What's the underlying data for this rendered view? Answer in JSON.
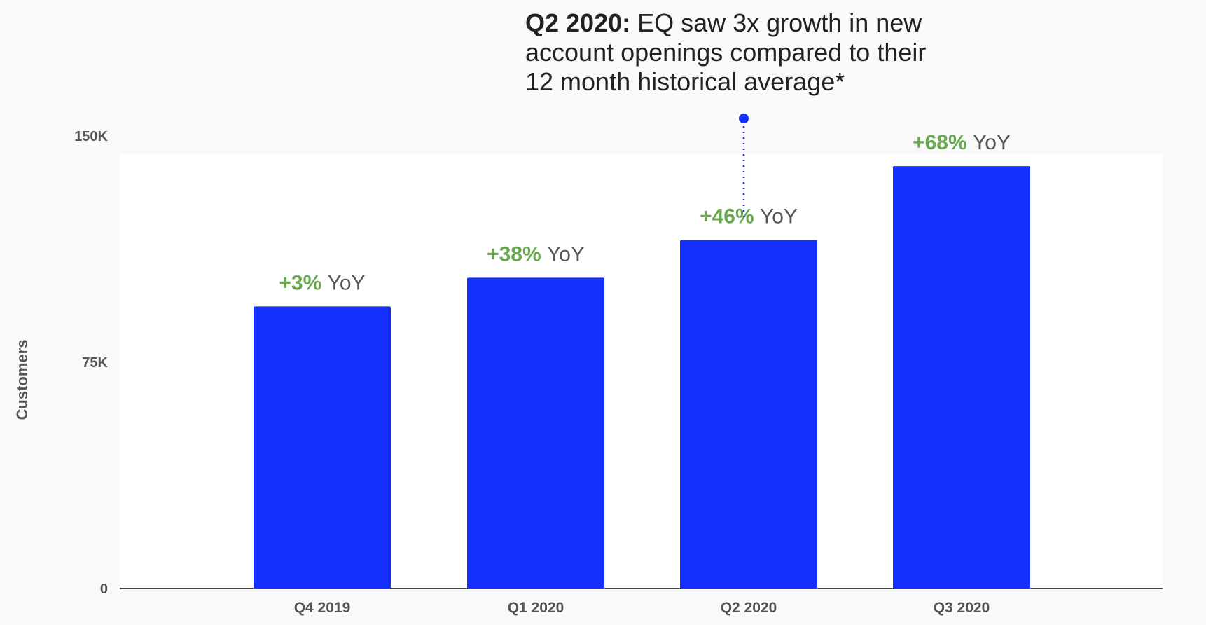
{
  "annotation": {
    "lead": "Q2 2020:",
    "text": " EQ saw 3x growth in new account openings compared to their 12 month historical average*"
  },
  "colors": {
    "bar": "#1530fb",
    "yoy_value": "#6aa84f",
    "yoy_suffix": "#555555",
    "axis_text": "#555555",
    "plot_background": "#ffffff",
    "page_background": "#f9f9fb",
    "callout": "#1530fb"
  },
  "chart_data": {
    "type": "bar",
    "title": "",
    "xlabel": "",
    "ylabel": "Customers",
    "categories": [
      "Q4 2019",
      "Q1 2020",
      "Q2 2020",
      "Q3 2020"
    ],
    "values": [
      93500,
      103000,
      115500,
      140000
    ],
    "ylim": [
      0,
      150000
    ],
    "yticks": [
      0,
      75000,
      150000
    ],
    "ytick_labels": [
      "0",
      "75K",
      "150K"
    ],
    "grid": false,
    "legend": "none",
    "bar_labels": [
      {
        "value": "+3%",
        "suffix": "YoY"
      },
      {
        "value": "+38%",
        "suffix": "YoY"
      },
      {
        "value": "+46%",
        "suffix": "YoY"
      },
      {
        "value": "+68%",
        "suffix": "YoY"
      }
    ],
    "callout_category": "Q2 2020"
  }
}
